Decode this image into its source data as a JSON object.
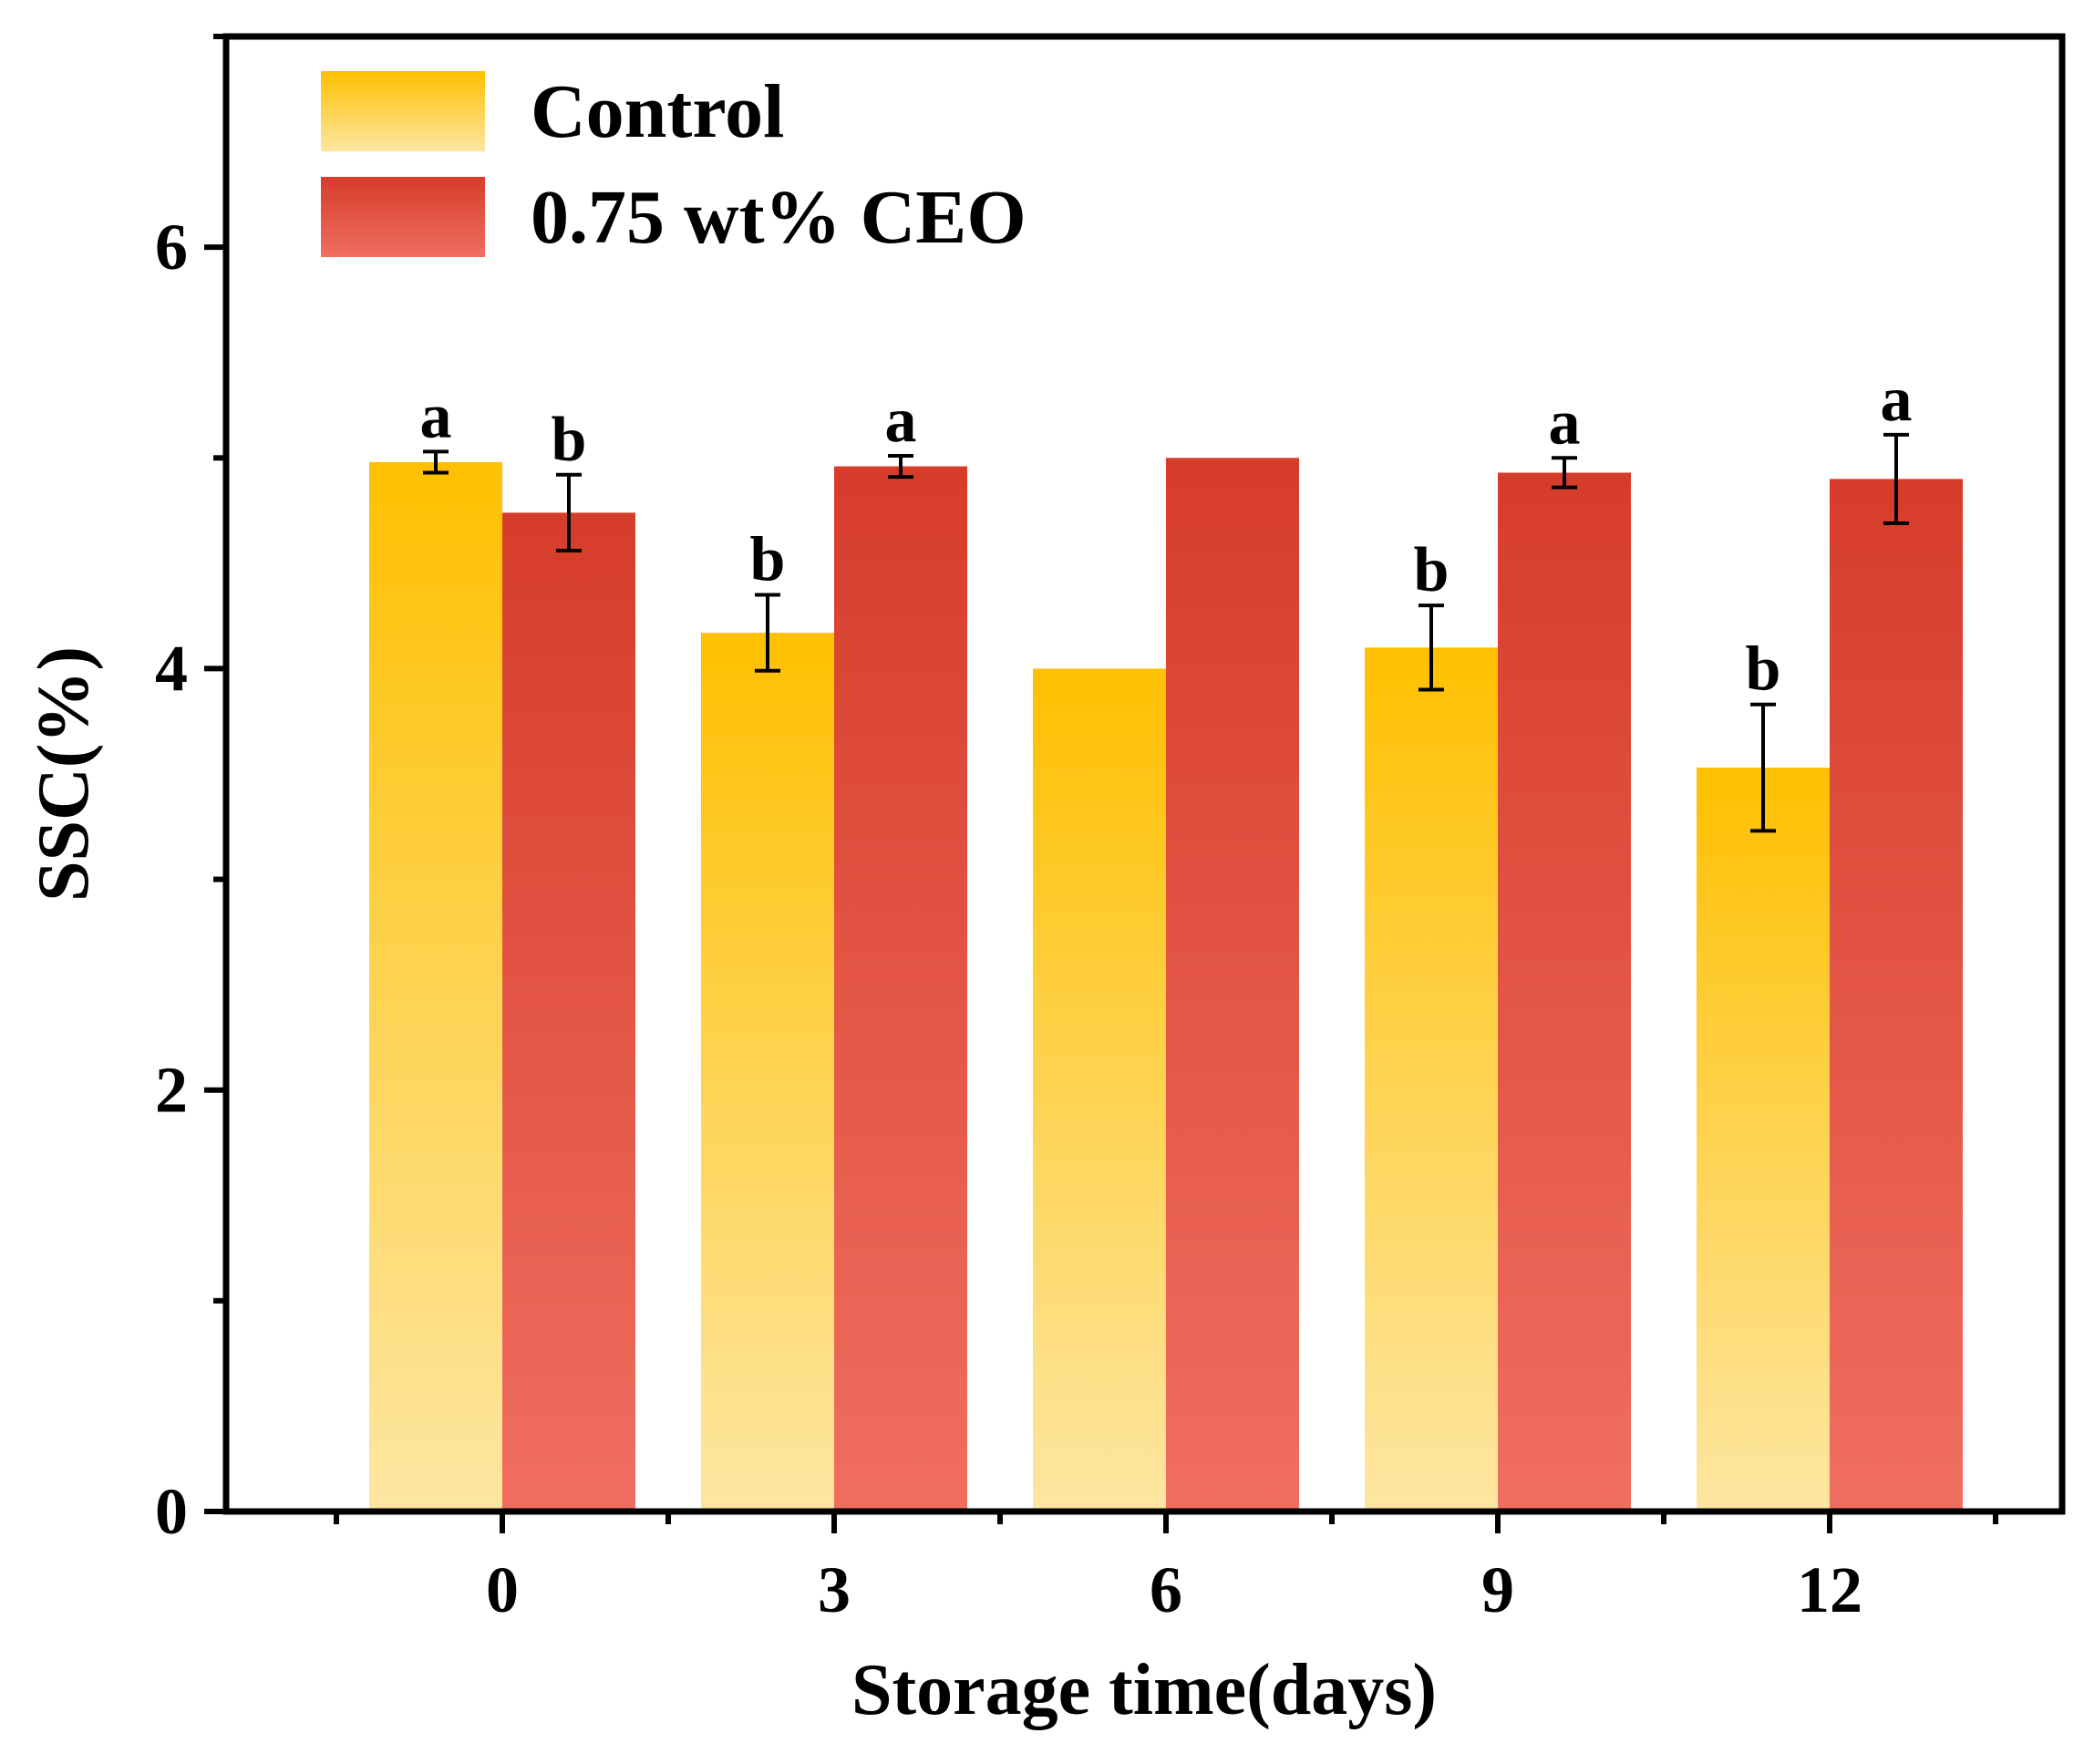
{
  "chart_data": {
    "type": "bar",
    "title": "",
    "xlabel": "Storage time(days)",
    "ylabel": "SSC(%)",
    "ylim": [
      0,
      7
    ],
    "yticks": [
      0,
      2,
      4,
      6
    ],
    "categories": [
      "0",
      "3",
      "6",
      "9",
      "12"
    ],
    "legend_position": "top-left",
    "grid": false,
    "series": [
      {
        "name": "Control",
        "color_top": "#FFC000",
        "color_bottom": "#FDE6A2",
        "values": [
          4.98,
          4.17,
          4.0,
          4.1,
          3.53
        ],
        "errors": [
          0.05,
          0.18,
          0.0,
          0.2,
          0.3
        ],
        "labels": [
          "a",
          "b",
          "",
          "b",
          "b"
        ]
      },
      {
        "name": "0.75 wt% CEO",
        "color_top": "#D63C2A",
        "color_bottom": "#F06E60",
        "values": [
          4.74,
          4.96,
          5.0,
          4.93,
          4.9
        ],
        "errors": [
          0.18,
          0.05,
          0.0,
          0.07,
          0.21
        ],
        "labels": [
          "b",
          "a",
          "",
          "a",
          "a"
        ]
      }
    ]
  }
}
